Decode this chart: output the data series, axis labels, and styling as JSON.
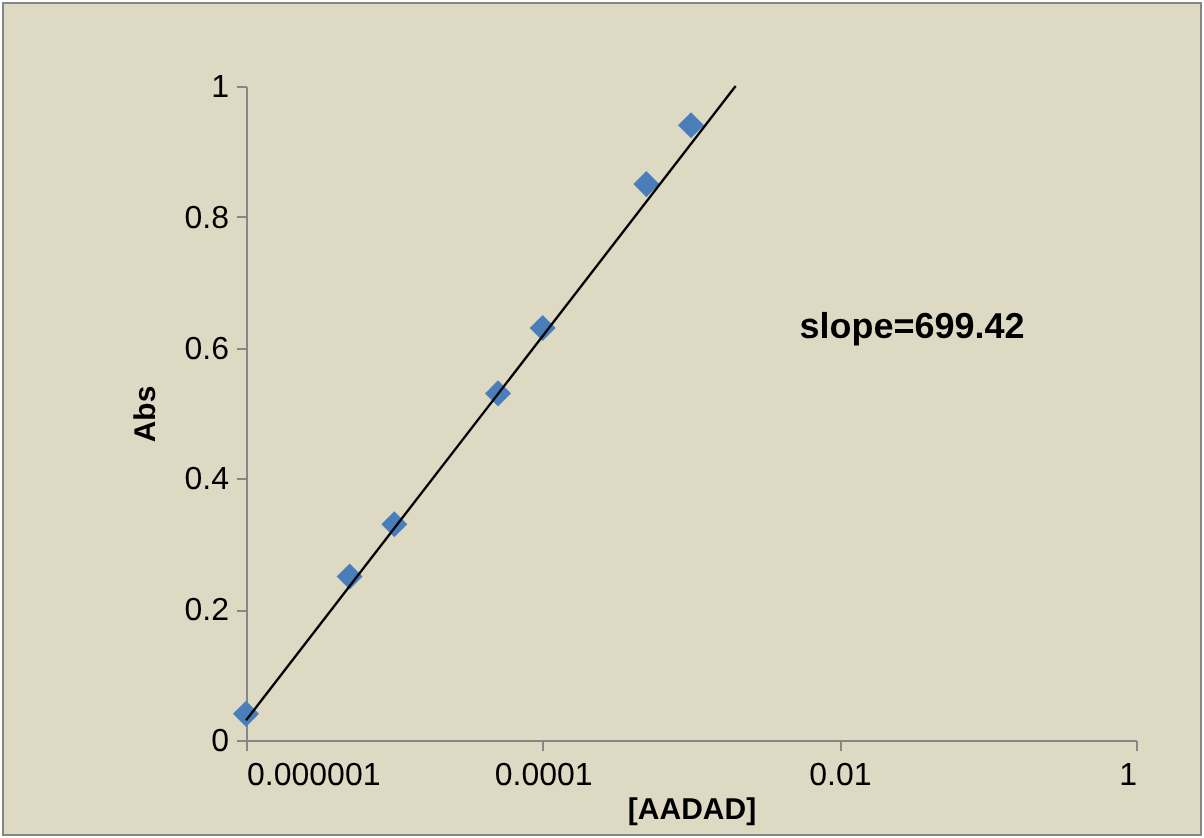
{
  "chart_data": {
    "type": "scatter",
    "xlabel": "[AADAD]",
    "ylabel": "Abs",
    "log": "x",
    "xlim": [
      1e-06,
      1
    ],
    "xticks": [
      {
        "value": 1e-06,
        "label": "0.000001"
      },
      0.0001,
      0.01,
      1
    ],
    "ylim": [
      0,
      1
    ],
    "yticks": [
      0,
      0.2,
      0.4,
      0.6,
      0.8,
      1
    ],
    "series": [
      {
        "color": "#4a7ebb",
        "marker": "diamond",
        "x": [
          1e-06,
          5e-06,
          1e-05,
          5e-05,
          0.0001,
          0.0005,
          0.001
        ],
        "values": [
          0.04,
          0.25,
          0.33,
          0.53,
          0.63,
          0.85,
          0.94
        ]
      },
      {
        "type": "line",
        "color": "#000000",
        "x": [
          1e-06,
          0.002
        ],
        "values": [
          0.03,
          1.0
        ]
      }
    ],
    "annotations": [
      "slope=699.42"
    ]
  }
}
